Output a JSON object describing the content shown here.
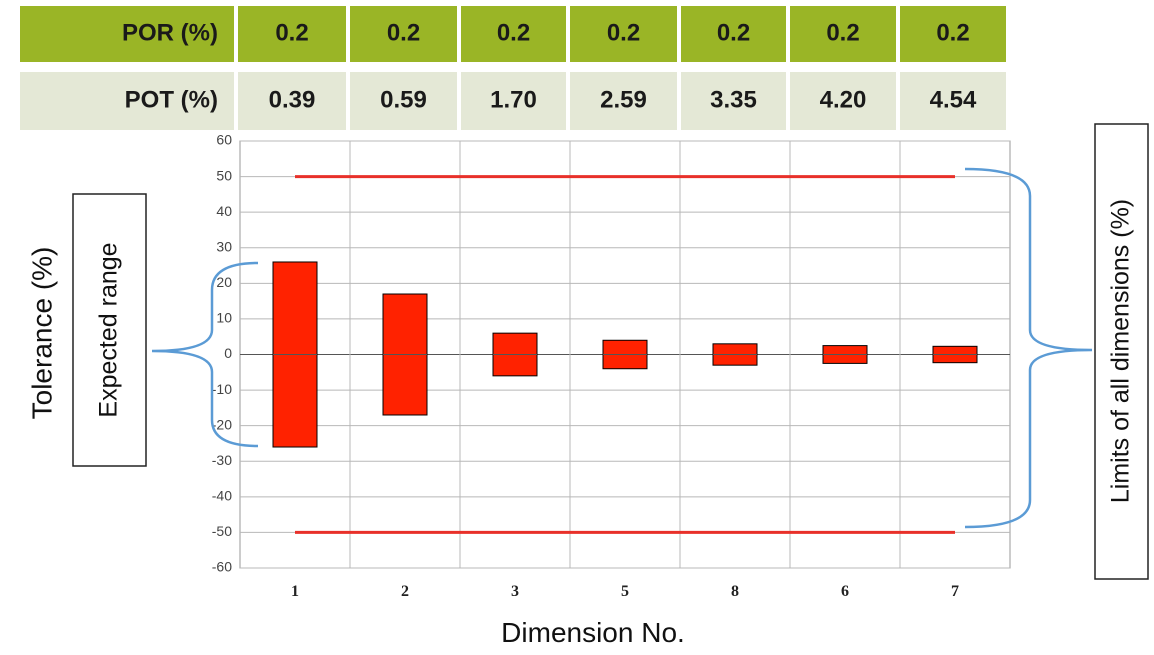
{
  "table": {
    "rows": [
      {
        "label": "POR (%)",
        "values": [
          "0.2",
          "0.2",
          "0.2",
          "0.2",
          "0.2",
          "0.2",
          "0.2"
        ],
        "color": "#9ab526"
      },
      {
        "label": "POT (%)",
        "values": [
          "0.39",
          "0.59",
          "1.70",
          "2.59",
          "3.35",
          "4.20",
          "4.54"
        ],
        "color": "#e4e8d6"
      }
    ]
  },
  "annotations": {
    "expected_range": "Expected range",
    "limits": "Limits of all dimensions (%)",
    "bracket_color": "#5b9bd5"
  },
  "chart_data": {
    "type": "bar",
    "subtype": "floating-range",
    "xlabel": "Dimension No.",
    "ylabel": "Tolerance (%)",
    "categories": [
      "1",
      "2",
      "3",
      "5",
      "8",
      "6",
      "7"
    ],
    "ranges": [
      [
        -26,
        26
      ],
      [
        -17,
        17
      ],
      [
        -6,
        6
      ],
      [
        -4,
        4
      ],
      [
        -3,
        3
      ],
      [
        -2.5,
        2.5
      ],
      [
        -2.3,
        2.3
      ]
    ],
    "limits": [
      -50,
      50
    ],
    "ylim": [
      -60,
      60
    ],
    "yticks": [
      60,
      50,
      40,
      30,
      20,
      10,
      0,
      -10,
      -20,
      -30,
      -40,
      -50,
      -60
    ],
    "grid": true,
    "bar_color": "#ff2200",
    "limit_color": "#e8302a"
  }
}
